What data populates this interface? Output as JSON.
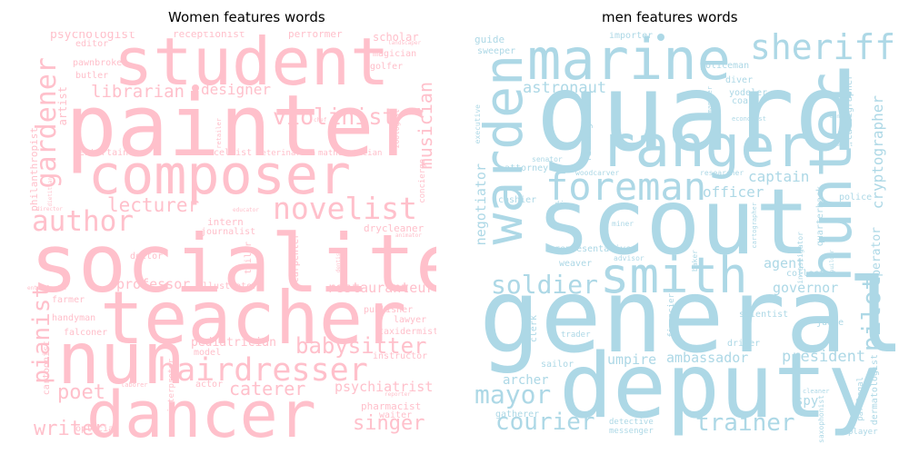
{
  "titles": {
    "left": "Women features words",
    "right": "men features words"
  },
  "colors": {
    "women": "#ffc0cb",
    "men": "#add8e6"
  },
  "women": {
    "painter": "painter",
    "composer": "composer",
    "socialite": "socialite",
    "student": "student",
    "teacher": "teacher",
    "nun": "nun",
    "dancer": "dancer",
    "hairdresser": "hairdresser",
    "author": "author",
    "novelist": "novelist",
    "violinist": "violinist",
    "librarian": "librarian",
    "designer": "designer",
    "gardener": "gardener",
    "musician": "musician",
    "pianist": "pianist",
    "lecturer": "lecturer",
    "babysitter": "babysitter",
    "caterer": "caterer",
    "poet": "poet",
    "writer": "writer",
    "singer": "singer",
    "psychiatrist": "psychiatrist",
    "professor": "professor",
    "restauranteur": "restauranteur",
    "pediatrician": "pediatrician",
    "psychologist": "psychologist",
    "receptionist": "receptionist",
    "performer": "performer",
    "scholar": "scholar",
    "editor": "editor",
    "pawnbroker": "pawnbroker",
    "butler": "butler",
    "magician": "magician",
    "golfer": "golfer",
    "artist": "artist",
    "philanthropist": "philanthropist",
    "entertainer": "entertainer",
    "cellist": "cellist",
    "veterinarian": "veterinarian",
    "mathematician": "mathematician",
    "concierge": "concierge",
    "intern": "intern",
    "journalist": "journalist",
    "drycleaner": "drycleaner",
    "doctor": "doctor",
    "tailor": "tailor",
    "carpenter": "carpenter",
    "illustrator": "illustrator",
    "farmer": "farmer",
    "handyman": "handyman",
    "falconer": "falconer",
    "publisher": "publisher",
    "lawyer": "lawyer",
    "taxidermist": "taxidermist",
    "instructor": "instructor",
    "model": "model",
    "cartoonist": "cartoonist",
    "actor": "actor",
    "interpreter": "interpreter",
    "pharmacist": "pharmacist",
    "waiter": "waiter",
    "optician": "optician",
    "retailer": "retailer",
    "zoologist": "zoologist",
    "educator": "educator",
    "chef": "chef",
    "laborer": "laborer",
    "reporter": "reporter",
    "dietitian": "dietitian",
    "entomologist": "entomologist",
    "dentist": "dentist",
    "animator": "animator",
    "director": "director",
    "landscaper": "landscaper"
  },
  "men": {
    "guard": "guard",
    "scout": "scout",
    "general": "general",
    "deputy": "deputy",
    "marine": "marine",
    "ranger": "ranger",
    "warden": "warden",
    "hunter": "hunter",
    "smith": "smith",
    "foreman": "foreman",
    "sheriff": "sheriff",
    "soldier": "soldier",
    "mayor": "mayor",
    "courier": "courier",
    "trainer": "trainer",
    "pilot": "pilot",
    "astronaut": "astronaut",
    "officer": "officer",
    "captain": "captain",
    "agent": "agent",
    "governor": "governor",
    "president": "president",
    "ambassador": "ambassador",
    "umpire": "umpire",
    "archer": "archer",
    "spy": "spy",
    "negotiator": "negotiator",
    "cryptographer": "cryptographer",
    "operator": "operator",
    "policeman": "policeman",
    "importer": "importer",
    "guide": "guide",
    "sweeper": "sweeper",
    "diver": "diver",
    "yodeler": "yodeler",
    "coach": "coach",
    "executive": "executive",
    "firefighter": "firefighter",
    "calligrapher": "calligrapher",
    "manager": "manager",
    "economist": "economist",
    "senator": "senator",
    "attorney": "attorney",
    "woodcarver": "woodcarver",
    "researcher": "researcher",
    "police": "police",
    "cashier": "cashier",
    "dj": "dj",
    "miner": "miner",
    "investigator": "investigator",
    "quarterback": "quarterback",
    "cartographer": "cartographer",
    "representative": "representative",
    "advisor": "advisor",
    "weaver": "weaver",
    "baker": "baker",
    "collector": "collector",
    "financier": "financier",
    "scientist": "scientist",
    "judge": "judge",
    "clerk": "clerk",
    "trader": "trader",
    "driver": "driver",
    "sailor": "sailor",
    "dermatologist": "dermatologist",
    "paralegal": "paralegal",
    "saxophonist": "saxophonist",
    "cleaner": "cleaner",
    "gatherer": "gatherer",
    "detective": "detective",
    "messenger": "messenger",
    "player": "player",
    "banker": "banker",
    "chemist": "chemist",
    "builder": "builder"
  }
}
